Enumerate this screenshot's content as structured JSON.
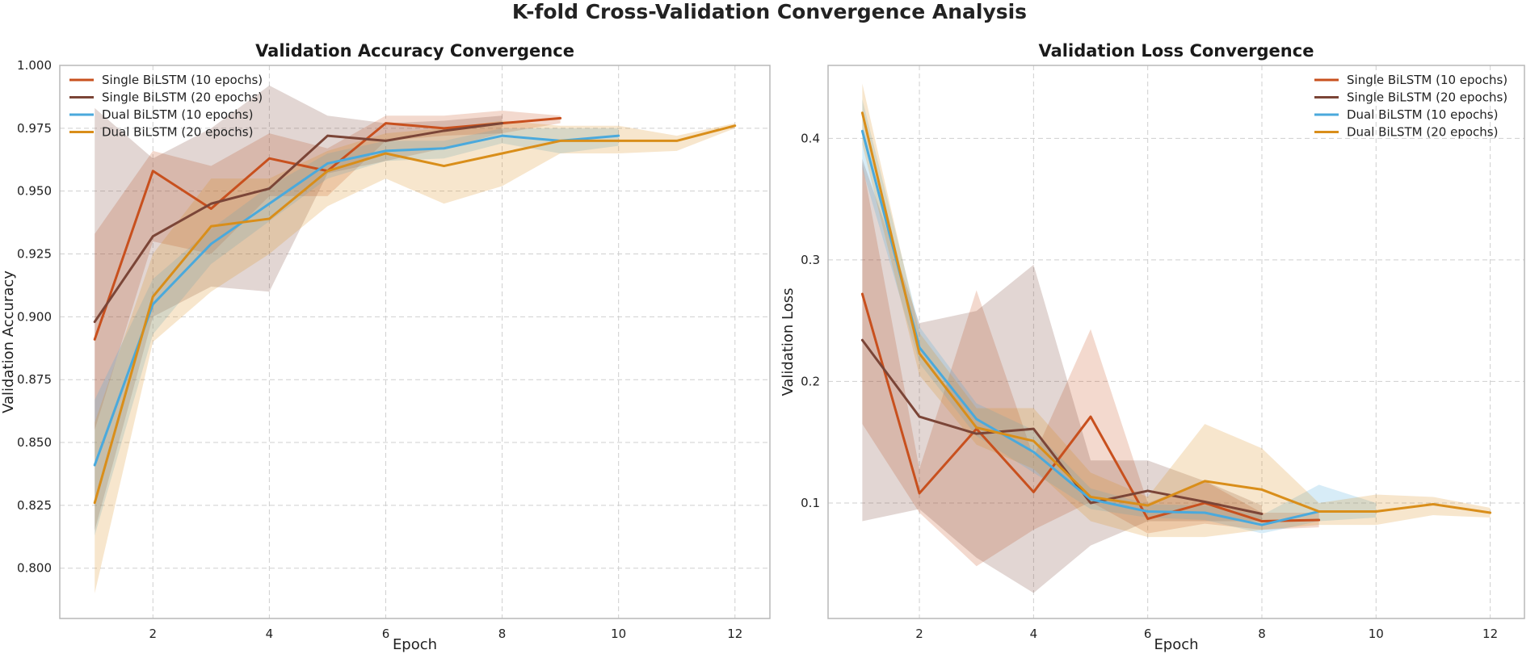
{
  "figure": {
    "title": "K-fold Cross-Validation Convergence Analysis"
  },
  "colors": {
    "Single BiLSTM (10 epochs)": "#c8501e",
    "Single BiLSTM (20 epochs)": "#7b4537",
    "Dual BiLSTM (10 epochs)": "#4aa9dc",
    "Dual BiLSTM (20 epochs)": "#d98e1a",
    "grid": "#cfcfcf",
    "axes": "#b8b8b8"
  },
  "chart_data": [
    {
      "type": "line",
      "title": "Validation Accuracy Convergence",
      "xlabel": "Epoch",
      "ylabel": "Validation Accuracy",
      "xlim": [
        0.4,
        12.6
      ],
      "ylim": [
        0.78,
        1.0
      ],
      "xticks": [
        2,
        4,
        6,
        8,
        10,
        12
      ],
      "yticks": [
        0.8,
        0.825,
        0.85,
        0.875,
        0.9,
        0.925,
        0.95,
        0.975,
        1.0
      ],
      "ytick_labels": [
        "0.800",
        "0.825",
        "0.850",
        "0.875",
        "0.900",
        "0.925",
        "0.950",
        "0.975",
        "1.000"
      ],
      "xtick_labels": [
        "2",
        "4",
        "6",
        "8",
        "10",
        "12"
      ],
      "grid": true,
      "legend": "top-left",
      "series": [
        {
          "name": "Single BiLSTM (10 epochs)",
          "x": [
            1,
            2,
            3,
            4,
            5,
            6,
            7,
            8,
            9
          ],
          "y": [
            0.891,
            0.958,
            0.943,
            0.963,
            0.958,
            0.977,
            0.975,
            0.977,
            0.979
          ],
          "lower": [
            0.855,
            0.93,
            0.925,
            0.948,
            0.948,
            0.97,
            0.972,
            0.973,
            0.977
          ],
          "upper": [
            0.933,
            0.966,
            0.96,
            0.973,
            0.967,
            0.98,
            0.98,
            0.982,
            0.98
          ]
        },
        {
          "name": "Single BiLSTM (20 epochs)",
          "x": [
            1,
            2,
            3,
            4,
            5,
            6,
            7,
            8
          ],
          "y": [
            0.898,
            0.932,
            0.945,
            0.951,
            0.972,
            0.97,
            0.974,
            0.977
          ],
          "lower": [
            0.815,
            0.9,
            0.912,
            0.91,
            0.957,
            0.962,
            0.967,
            0.973
          ],
          "upper": [
            0.983,
            0.963,
            0.975,
            0.992,
            0.98,
            0.977,
            0.978,
            0.98
          ]
        },
        {
          "name": "Dual BiLSTM (10 epochs)",
          "x": [
            1,
            2,
            3,
            4,
            5,
            6,
            7,
            8,
            9,
            10
          ],
          "y": [
            0.841,
            0.905,
            0.929,
            0.945,
            0.961,
            0.966,
            0.967,
            0.972,
            0.97,
            0.972
          ],
          "lower": [
            0.813,
            0.893,
            0.921,
            0.938,
            0.955,
            0.962,
            0.963,
            0.969,
            0.965,
            0.968
          ],
          "upper": [
            0.867,
            0.915,
            0.935,
            0.952,
            0.965,
            0.97,
            0.97,
            0.975,
            0.975,
            0.975
          ]
        },
        {
          "name": "Dual BiLSTM (20 epochs)",
          "x": [
            1,
            2,
            3,
            4,
            5,
            6,
            7,
            8,
            9,
            10,
            11,
            12
          ],
          "y": [
            0.826,
            0.908,
            0.936,
            0.939,
            0.958,
            0.965,
            0.96,
            0.965,
            0.97,
            0.97,
            0.97,
            0.976
          ],
          "lower": [
            0.79,
            0.89,
            0.91,
            0.925,
            0.944,
            0.955,
            0.945,
            0.952,
            0.965,
            0.965,
            0.966,
            0.975
          ],
          "upper": [
            0.858,
            0.925,
            0.955,
            0.955,
            0.966,
            0.973,
            0.975,
            0.978,
            0.976,
            0.976,
            0.972,
            0.977
          ]
        }
      ]
    },
    {
      "type": "line",
      "title": "Validation Loss Convergence",
      "xlabel": "Epoch",
      "ylabel": "Validation Loss",
      "xlim": [
        0.4,
        12.6
      ],
      "ylim": [
        0.005,
        0.46
      ],
      "xticks": [
        2,
        4,
        6,
        8,
        10,
        12
      ],
      "yticks": [
        0.1,
        0.2,
        0.3,
        0.4
      ],
      "ytick_labels": [
        "0.1",
        "0.2",
        "0.3",
        "0.4"
      ],
      "xtick_labels": [
        "2",
        "4",
        "6",
        "8",
        "10",
        "12"
      ],
      "grid": true,
      "legend": "top-right",
      "series": [
        {
          "name": "Single BiLSTM (10 epochs)",
          "x": [
            1,
            2,
            3,
            4,
            5,
            6,
            7,
            8,
            9
          ],
          "y": [
            0.272,
            0.108,
            0.161,
            0.109,
            0.171,
            0.087,
            0.1,
            0.085,
            0.086
          ],
          "lower": [
            0.165,
            0.092,
            0.048,
            0.078,
            0.101,
            0.075,
            0.083,
            0.078,
            0.08
          ],
          "upper": [
            0.38,
            0.128,
            0.275,
            0.138,
            0.243,
            0.1,
            0.118,
            0.092,
            0.092
          ]
        },
        {
          "name": "Single BiLSTM (20 epochs)",
          "x": [
            1,
            2,
            3,
            4,
            5,
            6,
            7,
            8
          ],
          "y": [
            0.234,
            0.171,
            0.157,
            0.161,
            0.1,
            0.11,
            0.101,
            0.091
          ],
          "lower": [
            0.085,
            0.095,
            0.055,
            0.026,
            0.065,
            0.085,
            0.085,
            0.085
          ],
          "upper": [
            0.383,
            0.248,
            0.258,
            0.296,
            0.135,
            0.135,
            0.118,
            0.098
          ]
        },
        {
          "name": "Dual BiLSTM (10 epochs)",
          "x": [
            1,
            2,
            3,
            4,
            5,
            6,
            7,
            8,
            9,
            10
          ],
          "y": [
            0.406,
            0.228,
            0.169,
            0.142,
            0.103,
            0.093,
            0.092,
            0.082,
            0.093,
            0.093
          ],
          "lower": [
            0.375,
            0.215,
            0.155,
            0.125,
            0.095,
            0.088,
            0.086,
            0.075,
            0.085,
            0.088
          ],
          "upper": [
            0.432,
            0.245,
            0.182,
            0.16,
            0.112,
            0.099,
            0.098,
            0.09,
            0.115,
            0.1
          ]
        },
        {
          "name": "Dual BiLSTM (20 epochs)",
          "x": [
            1,
            2,
            3,
            4,
            5,
            6,
            7,
            8,
            9,
            10,
            11,
            12
          ],
          "y": [
            0.421,
            0.223,
            0.162,
            0.151,
            0.105,
            0.098,
            0.118,
            0.111,
            0.093,
            0.093,
            0.099,
            0.092
          ],
          "lower": [
            0.395,
            0.205,
            0.148,
            0.128,
            0.085,
            0.072,
            0.072,
            0.078,
            0.082,
            0.082,
            0.09,
            0.088
          ],
          "upper": [
            0.445,
            0.24,
            0.178,
            0.178,
            0.125,
            0.105,
            0.165,
            0.145,
            0.1,
            0.107,
            0.105,
            0.096
          ]
        }
      ]
    }
  ]
}
